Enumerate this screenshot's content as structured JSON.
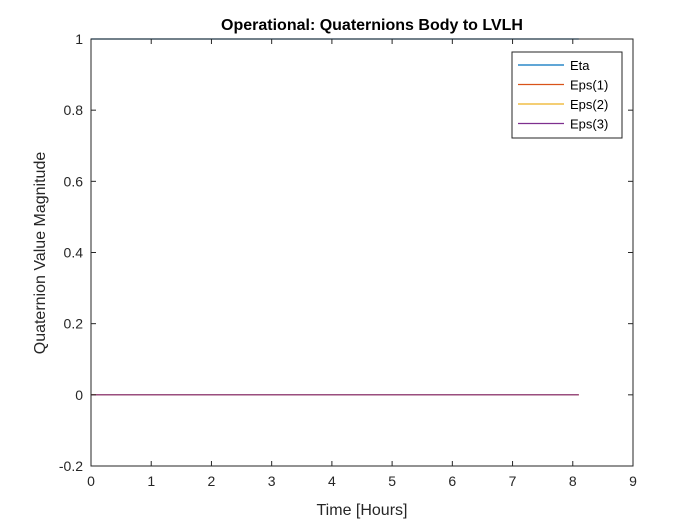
{
  "chart_data": {
    "type": "line",
    "title": "Operational: Quaternions Body to LVLH",
    "xlabel": "Time [Hours]",
    "ylabel": "Quaternion Value Magnitude",
    "xlim": [
      0,
      9
    ],
    "ylim": [
      -0.2,
      1
    ],
    "xticks": [
      0,
      1,
      2,
      3,
      4,
      5,
      6,
      7,
      8,
      9
    ],
    "yticks": [
      -0.2,
      0,
      0.2,
      0.4,
      0.6,
      0.8,
      1
    ],
    "xtick_labels": [
      "0",
      "1",
      "2",
      "3",
      "4",
      "5",
      "6",
      "7",
      "8",
      "9"
    ],
    "ytick_labels": [
      "-0.2",
      "0",
      "0.2",
      "0.4",
      "0.6",
      "0.8",
      "1"
    ],
    "grid": false,
    "legend_position": "top-right",
    "x": [
      0,
      8.1
    ],
    "series": [
      {
        "name": "Eta",
        "color": "#0072BD",
        "values": [
          1,
          1
        ]
      },
      {
        "name": "Eps(1)",
        "color": "#D95319",
        "values": [
          0,
          0
        ]
      },
      {
        "name": "Eps(2)",
        "color": "#EDB120",
        "values": [
          0,
          0
        ]
      },
      {
        "name": "Eps(3)",
        "color": "#7E2F8E",
        "values": [
          0,
          0
        ]
      }
    ]
  }
}
